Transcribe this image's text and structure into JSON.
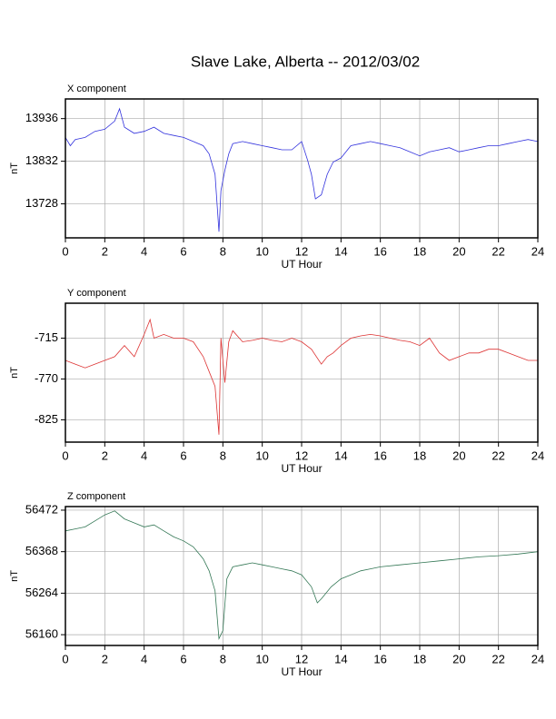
{
  "title": "Slave Lake, Alberta -- 2012/03/02",
  "chart_data": [
    {
      "type": "line",
      "subtitle": "X component",
      "xlabel": "UT Hour",
      "ylabel": "nT",
      "color": "#3333dd",
      "grid": true,
      "xlim": [
        0,
        24
      ],
      "xticks": [
        0,
        2,
        4,
        6,
        8,
        10,
        12,
        14,
        16,
        18,
        20,
        22,
        24
      ],
      "ylim": [
        13645,
        13984
      ],
      "yticks": [
        13728,
        13832,
        13936
      ],
      "x": [
        0,
        0.25,
        0.5,
        1,
        1.5,
        2,
        2.5,
        2.75,
        3,
        3.5,
        4,
        4.5,
        5,
        5.5,
        6,
        6.5,
        7,
        7.3,
        7.6,
        7.8,
        7.9,
        8.1,
        8.3,
        8.5,
        9,
        9.5,
        10,
        10.5,
        11,
        11.5,
        12,
        12.3,
        12.5,
        12.7,
        13,
        13.3,
        13.6,
        14,
        14.5,
        15,
        15.5,
        16,
        16.5,
        17,
        17.5,
        18,
        18.5,
        19,
        19.5,
        20,
        20.5,
        21,
        21.5,
        22,
        22.5,
        23,
        23.5,
        24
      ],
      "values": [
        13890,
        13870,
        13885,
        13890,
        13905,
        13910,
        13930,
        13960,
        13915,
        13900,
        13905,
        13915,
        13900,
        13895,
        13890,
        13880,
        13870,
        13850,
        13800,
        13660,
        13760,
        13810,
        13850,
        13875,
        13880,
        13875,
        13870,
        13865,
        13860,
        13860,
        13880,
        13835,
        13800,
        13740,
        13750,
        13800,
        13830,
        13840,
        13870,
        13875,
        13880,
        13875,
        13870,
        13865,
        13855,
        13845,
        13855,
        13860,
        13865,
        13855,
        13860,
        13865,
        13870,
        13870,
        13875,
        13880,
        13885,
        13880
      ]
    },
    {
      "type": "line",
      "subtitle": "Y component",
      "xlabel": "UT Hour",
      "ylabel": "nT",
      "color": "#dd3333",
      "grid": true,
      "xlim": [
        0,
        24
      ],
      "xticks": [
        0,
        2,
        4,
        6,
        8,
        10,
        12,
        14,
        16,
        18,
        20,
        22,
        24
      ],
      "ylim": [
        -855,
        -668
      ],
      "yticks": [
        -825,
        -770,
        -715
      ],
      "x": [
        0,
        0.5,
        1,
        1.5,
        2,
        2.5,
        3,
        3.5,
        4,
        4.3,
        4.5,
        5,
        5.5,
        6,
        6.5,
        7,
        7.3,
        7.6,
        7.8,
        7.9,
        8.1,
        8.3,
        8.5,
        9,
        9.5,
        10,
        10.5,
        11,
        11.5,
        12,
        12.5,
        13,
        13.3,
        13.6,
        14,
        14.5,
        15,
        15.5,
        16,
        16.5,
        17,
        17.5,
        18,
        18.5,
        19,
        19.5,
        20,
        20.5,
        21,
        21.5,
        22,
        22.5,
        23,
        23.5,
        24
      ],
      "values": [
        -745,
        -750,
        -755,
        -750,
        -745,
        -740,
        -725,
        -740,
        -710,
        -690,
        -715,
        -710,
        -715,
        -715,
        -720,
        -740,
        -760,
        -780,
        -845,
        -715,
        -775,
        -720,
        -705,
        -720,
        -718,
        -715,
        -718,
        -720,
        -715,
        -720,
        -730,
        -750,
        -740,
        -735,
        -725,
        -715,
        -712,
        -710,
        -712,
        -715,
        -718,
        -720,
        -725,
        -715,
        -735,
        -745,
        -740,
        -735,
        -735,
        -730,
        -730,
        -735,
        -740,
        -745,
        -745
      ]
    },
    {
      "type": "line",
      "subtitle": "Z component",
      "xlabel": "UT Hour",
      "ylabel": "nT",
      "color": "#337755",
      "grid": true,
      "xlim": [
        0,
        24
      ],
      "xticks": [
        0,
        2,
        4,
        6,
        8,
        10,
        12,
        14,
        16,
        18,
        20,
        22,
        24
      ],
      "ylim": [
        56133,
        56481
      ],
      "yticks": [
        56160,
        56264,
        56368,
        56472
      ],
      "x": [
        0,
        0.5,
        1,
        1.5,
        2,
        2.5,
        2.75,
        3,
        3.5,
        4,
        4.5,
        5,
        5.5,
        6,
        6.5,
        7,
        7.3,
        7.6,
        7.8,
        8,
        8.2,
        8.5,
        9,
        9.5,
        10,
        10.5,
        11,
        11.5,
        12,
        12.5,
        12.8,
        13,
        13.5,
        14,
        14.5,
        15,
        15.5,
        16,
        17,
        18,
        19,
        20,
        21,
        22,
        23,
        24
      ],
      "values": [
        56420,
        56425,
        56430,
        56445,
        56460,
        56470,
        56460,
        56450,
        56440,
        56430,
        56435,
        56420,
        56405,
        56395,
        56380,
        56350,
        56320,
        56270,
        56150,
        56170,
        56300,
        56330,
        56335,
        56340,
        56335,
        56330,
        56325,
        56320,
        56310,
        56280,
        56240,
        56250,
        56280,
        56300,
        56310,
        56320,
        56325,
        56330,
        56335,
        56340,
        56345,
        56350,
        56355,
        56358,
        56362,
        56368
      ]
    }
  ]
}
